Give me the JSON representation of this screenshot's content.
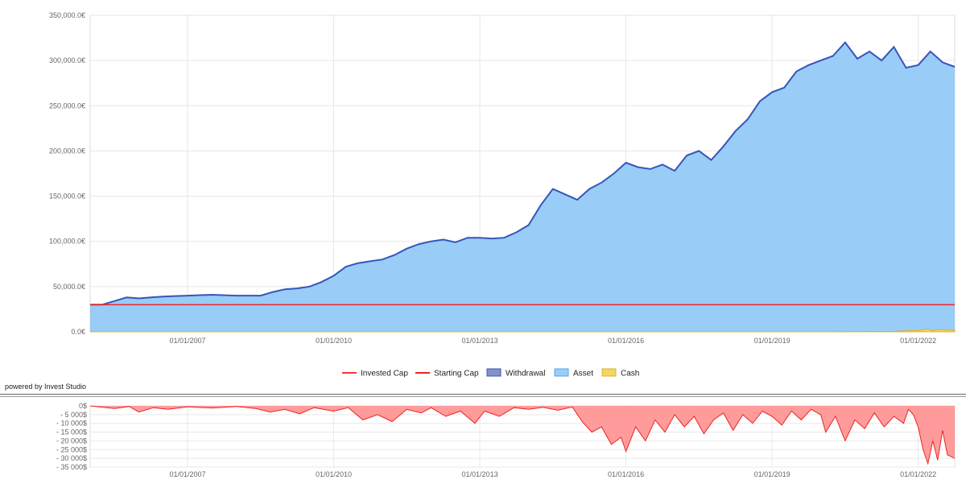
{
  "chart_data": [
    {
      "type": "area",
      "y_tick_labels": [
        "350,000.0€",
        "300,000.0€",
        "250,000.0€",
        "200,000.0€",
        "150,000.0€",
        "100,000.0€",
        "50,000.0€",
        "0.0€"
      ],
      "y_ticks": [
        350000,
        300000,
        250000,
        200000,
        150000,
        100000,
        50000,
        0
      ],
      "ylim": [
        0,
        350000
      ],
      "x_tick_labels": [
        "01/01/2007",
        "01/01/2010",
        "01/01/2013",
        "01/01/2016",
        "01/01/2019",
        "01/01/2022"
      ],
      "x_ticks": [
        2007,
        2010,
        2013,
        2016,
        2019,
        2022
      ],
      "xlim": [
        2005.0,
        2022.75
      ],
      "grid": true,
      "legend_position": "bottom-center",
      "legend": [
        {
          "label": "Invested Cap",
          "kind": "line",
          "color": "#ff3333"
        },
        {
          "label": "Starting Cap",
          "kind": "line",
          "color": "#ee2222"
        },
        {
          "label": "Withdrawal",
          "kind": "box",
          "color": "#7e93c9",
          "border": "#3b5aa8"
        },
        {
          "label": "Asset",
          "kind": "box",
          "color": "#99ccf7",
          "border": "#5aa3e0"
        },
        {
          "label": "Cash",
          "kind": "box",
          "color": "#f5d563",
          "border": "#d8b42c"
        }
      ],
      "series": [
        {
          "name": "Asset",
          "color": "#99ccf7",
          "line_color": "#3556b8",
          "x": [
            2005.0,
            2005.25,
            2005.5,
            2005.75,
            2006.0,
            2006.25,
            2006.5,
            2006.75,
            2007.0,
            2007.5,
            2008.0,
            2008.5,
            2008.75,
            2009.0,
            2009.25,
            2009.5,
            2009.75,
            2010.0,
            2010.25,
            2010.5,
            2010.75,
            2011.0,
            2011.25,
            2011.5,
            2011.75,
            2012.0,
            2012.25,
            2012.5,
            2012.75,
            2013.0,
            2013.25,
            2013.5,
            2013.75,
            2014.0,
            2014.25,
            2014.5,
            2014.75,
            2015.0,
            2015.25,
            2015.5,
            2015.75,
            2016.0,
            2016.25,
            2016.5,
            2016.75,
            2017.0,
            2017.25,
            2017.5,
            2017.75,
            2018.0,
            2018.25,
            2018.5,
            2018.75,
            2019.0,
            2019.25,
            2019.5,
            2019.75,
            2020.0,
            2020.25,
            2020.5,
            2020.75,
            2021.0,
            2021.25,
            2021.5,
            2021.75,
            2022.0,
            2022.25,
            2022.5,
            2022.75
          ],
          "values": [
            30000,
            30000,
            34000,
            38000,
            37000,
            38000,
            39000,
            39500,
            40000,
            41000,
            40000,
            40000,
            44000,
            47000,
            48000,
            50000,
            55000,
            62000,
            72000,
            76000,
            78000,
            80000,
            85000,
            92000,
            97000,
            100000,
            102000,
            99000,
            104000,
            104000,
            103000,
            104000,
            110000,
            118000,
            140000,
            158000,
            152000,
            146000,
            158000,
            165000,
            175000,
            187000,
            182000,
            180000,
            185000,
            178000,
            195000,
            200000,
            190000,
            205000,
            222000,
            235000,
            255000,
            265000,
            270000,
            288000,
            295000,
            300000,
            305000,
            320000,
            302000,
            310000,
            300000,
            315000,
            292000,
            295000,
            310000,
            298000,
            293000
          ]
        },
        {
          "name": "Invested Cap",
          "color": "#ff3333",
          "x": [
            2005.0,
            2022.75
          ],
          "values": [
            30000,
            30000
          ]
        },
        {
          "name": "Starting Cap",
          "color": "#ee2222",
          "x": [
            2005.0,
            2022.75
          ],
          "values": [
            30000,
            30000
          ]
        },
        {
          "name": "Cash",
          "color": "#f5d563",
          "x": [
            2005.0,
            2020.0,
            2021.5,
            2022.0,
            2022.2,
            2022.3,
            2022.4,
            2022.75
          ],
          "values": [
            0,
            0,
            500,
            1500,
            3000,
            1000,
            2500,
            1500
          ]
        }
      ]
    },
    {
      "type": "area",
      "y_tick_labels": [
        "0$",
        "- 5 000$",
        "- 10 000$",
        "- 15 000$",
        "- 20 000$",
        "- 25 000$",
        "- 30 000$",
        "- 35 000$"
      ],
      "y_ticks": [
        0,
        -5000,
        -10000,
        -15000,
        -20000,
        -25000,
        -30000,
        -35000
      ],
      "ylim": [
        -35000,
        0
      ],
      "x_tick_labels": [
        "01/01/2007",
        "01/01/2010",
        "01/01/2013",
        "01/01/2016",
        "01/01/2019",
        "01/01/2022"
      ],
      "x_ticks": [
        2007,
        2010,
        2013,
        2016,
        2019,
        2022
      ],
      "xlim": [
        2005.0,
        2022.75
      ],
      "grid": true,
      "series": [
        {
          "name": "Drawdown",
          "color": "#ff8a8a",
          "line_color": "#ee2222",
          "x": [
            2005.0,
            2005.5,
            2005.8,
            2006.0,
            2006.3,
            2006.6,
            2007.0,
            2007.5,
            2008.0,
            2008.4,
            2008.7,
            2009.0,
            2009.3,
            2009.6,
            2010.0,
            2010.3,
            2010.6,
            2010.9,
            2011.2,
            2011.5,
            2011.8,
            2012.0,
            2012.3,
            2012.6,
            2012.9,
            2013.1,
            2013.4,
            2013.7,
            2014.0,
            2014.3,
            2014.6,
            2014.9,
            2015.1,
            2015.3,
            2015.5,
            2015.7,
            2015.9,
            2016.0,
            2016.2,
            2016.4,
            2016.6,
            2016.8,
            2017.0,
            2017.2,
            2017.4,
            2017.6,
            2017.8,
            2018.0,
            2018.2,
            2018.4,
            2018.6,
            2018.8,
            2019.0,
            2019.2,
            2019.4,
            2019.6,
            2019.8,
            2020.0,
            2020.1,
            2020.3,
            2020.5,
            2020.7,
            2020.9,
            2021.1,
            2021.3,
            2021.5,
            2021.7,
            2021.8,
            2021.9,
            2022.0,
            2022.1,
            2022.2,
            2022.3,
            2022.4,
            2022.5,
            2022.6,
            2022.75
          ],
          "values": [
            0,
            -1500,
            -300,
            -3500,
            -1000,
            -2000,
            -500,
            -1200,
            -300,
            -1500,
            -3500,
            -2000,
            -4500,
            -1000,
            -3000,
            -1000,
            -8000,
            -5000,
            -9000,
            -2000,
            -4000,
            -1000,
            -6000,
            -3000,
            -10000,
            -3000,
            -6000,
            -1000,
            -2000,
            -800,
            -2500,
            -600,
            -9000,
            -15000,
            -12000,
            -22000,
            -18000,
            -26000,
            -12000,
            -20000,
            -8000,
            -15000,
            -5000,
            -12000,
            -6000,
            -16000,
            -8000,
            -4000,
            -14000,
            -5000,
            -10000,
            -3000,
            -6000,
            -11000,
            -3000,
            -8000,
            -2000,
            -5000,
            -15000,
            -6000,
            -20000,
            -8000,
            -13000,
            -4000,
            -12000,
            -6000,
            -10000,
            -2000,
            -5000,
            -12000,
            -25000,
            -33000,
            -20000,
            -31000,
            -14000,
            -28000,
            -30000
          ]
        }
      ]
    }
  ],
  "footer": {
    "powered_by": "powered by Invest Studio"
  }
}
